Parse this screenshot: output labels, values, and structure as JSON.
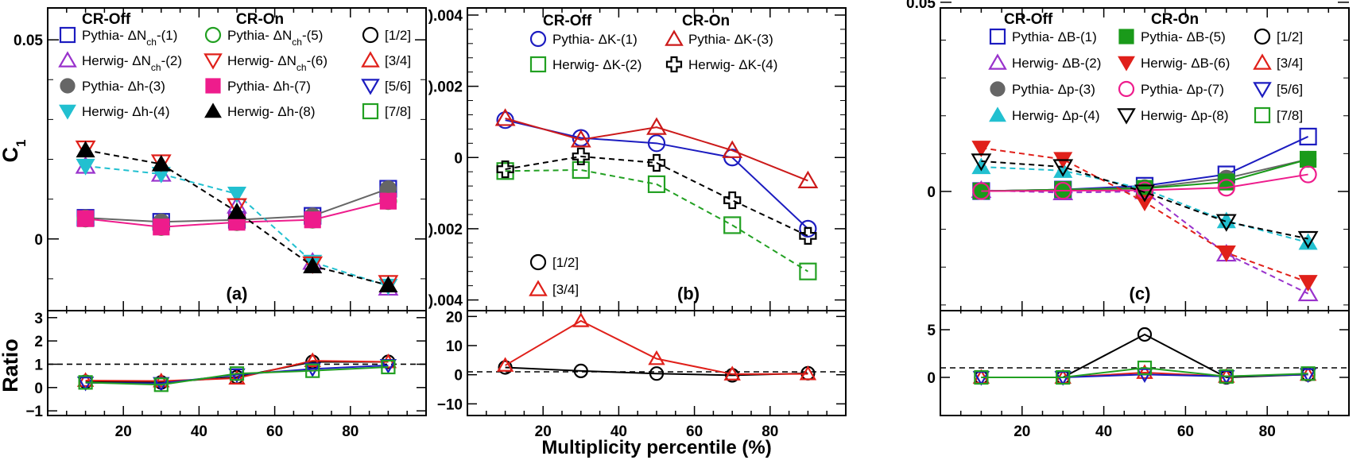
{
  "chart_data": [
    {
      "type": "line",
      "panel_label": "(a)",
      "ylabel": "C",
      "ylabel_sub": "1",
      "xlim": [
        0,
        100
      ],
      "ylim": [
        -0.018,
        0.058
      ],
      "yticks": [
        0,
        0.05
      ],
      "ytick_labels": [
        "0",
        "0.05"
      ],
      "xticks": [
        20,
        40,
        60,
        80
      ],
      "xtick_labels": [
        "20",
        "40",
        "60",
        "80"
      ],
      "legend_headers": [
        "CR-Off",
        "CR-On"
      ],
      "series": [
        {
          "name": "Pythia- ΔN",
          "sub": "ch",
          "tag": "-(1)",
          "color": "#1c1cc0",
          "marker": "square-open",
          "line": "none",
          "x": [
            10,
            30,
            50,
            70,
            90
          ],
          "y": [
            0.0053,
            0.0043,
            0.0048,
            0.0058,
            0.0126
          ]
        },
        {
          "name": "Herwig- ΔN",
          "sub": "ch",
          "tag": "-(2)",
          "color": "#9932cc",
          "marker": "triangle-up-open",
          "line": "none",
          "x": [
            10,
            30,
            50,
            70,
            90
          ],
          "y": [
            0.0183,
            0.0163,
            0.0083,
            -0.0058,
            -0.0123
          ]
        },
        {
          "name": "Pythia- Δh",
          "sub": "",
          "tag": "-(3)",
          "color": "#666666",
          "marker": "circle-filled",
          "line": "solid",
          "x": [
            10,
            30,
            50,
            70,
            90
          ],
          "y": [
            0.0053,
            0.0043,
            0.0048,
            0.0058,
            0.0126
          ]
        },
        {
          "name": "Herwig- Δh",
          "sub": "",
          "tag": "-(4)",
          "color": "#22c0d0",
          "marker": "triangle-down-filled",
          "line": "dashed",
          "x": [
            10,
            30,
            50,
            70,
            90
          ],
          "y": [
            0.0183,
            0.0163,
            0.0113,
            -0.0058,
            -0.0118
          ]
        },
        {
          "name": "Pythia- ΔN",
          "sub": "ch",
          "tag": "-(5)",
          "color": "#22a022",
          "marker": "circle-open",
          "line": "none",
          "x": [
            10,
            30,
            50,
            70,
            90
          ],
          "y": [
            0.0051,
            0.003,
            0.0042,
            0.0048,
            0.0095
          ]
        },
        {
          "name": "Herwig- ΔN",
          "sub": "ch",
          "tag": "-(6)",
          "color": "#e0201a",
          "marker": "triangle-down-open",
          "line": "none",
          "x": [
            10,
            30,
            50,
            70,
            90
          ],
          "y": [
            0.0228,
            0.0193,
            0.0083,
            -0.0063,
            -0.011
          ]
        },
        {
          "name": "Pythia- Δh",
          "sub": "",
          "tag": "-(7)",
          "color": "#ee1c8c",
          "marker": "square-filled",
          "line": "solid",
          "x": [
            10,
            30,
            50,
            70,
            90
          ],
          "y": [
            0.0051,
            0.003,
            0.0042,
            0.0048,
            0.0095
          ]
        },
        {
          "name": "Herwig- Δh",
          "sub": "",
          "tag": "-(8)",
          "color": "#000000",
          "marker": "triangle-up-filled",
          "line": "dashed",
          "x": [
            10,
            30,
            50,
            70,
            90
          ],
          "y": [
            0.0223,
            0.0188,
            0.0068,
            -0.0068,
            -0.0116
          ]
        }
      ],
      "ratio": {
        "ylabel": "Ratio",
        "ylim": [
          -1.2,
          3.3
        ],
        "yticks": [
          -1,
          0,
          1,
          2,
          3
        ],
        "ytick_labels": [
          "−1",
          "0",
          "1",
          "2",
          "3"
        ],
        "reference_line": 1,
        "series": [
          {
            "name": "[1/2]",
            "color": "#000000",
            "marker": "circle-open",
            "x": [
              10,
              30,
              50,
              70,
              90
            ],
            "y": [
              0.25,
              0.22,
              0.45,
              1.1,
              1.1
            ]
          },
          {
            "name": "[3/4]",
            "color": "#e0201a",
            "marker": "triangle-up-open",
            "x": [
              10,
              30,
              50,
              70,
              90
            ],
            "y": [
              0.3,
              0.28,
              0.4,
              1.15,
              1.1
            ]
          },
          {
            "name": "[5/6]",
            "color": "#1c1cc0",
            "marker": "triangle-down-open",
            "x": [
              10,
              30,
              50,
              70,
              90
            ],
            "y": [
              0.2,
              0.18,
              0.55,
              0.8,
              0.95
            ]
          },
          {
            "name": "[7/8]",
            "color": "#22a022",
            "marker": "square-open",
            "x": [
              10,
              30,
              50,
              70,
              90
            ],
            "y": [
              0.22,
              0.12,
              0.6,
              0.72,
              0.88
            ]
          }
        ]
      }
    },
    {
      "type": "line",
      "panel_label": "(b)",
      "xlim": [
        0,
        100
      ],
      "ylim": [
        -0.0043,
        0.0042
      ],
      "yticks": [
        -0.004,
        -0.002,
        0,
        0.002,
        0.004
      ],
      "ytick_labels": [
        ").004",
        ").002",
        "0",
        ").002",
        ").004"
      ],
      "xticks": [
        20,
        40,
        60,
        80
      ],
      "xtick_labels": [
        "20",
        "40",
        "60",
        "80"
      ],
      "xlabel": "Multiplicity percentile (%)",
      "legend_headers": [
        "CR-Off",
        "CR-On"
      ],
      "series": [
        {
          "name": "Pythia- ΔK",
          "sub": "",
          "tag": "-(1)",
          "color": "#1c1cc0",
          "marker": "circle-open",
          "line": "solid",
          "x": [
            10,
            30,
            50,
            70,
            90
          ],
          "y": [
            0.00105,
            0.00055,
            0.0004,
            0.0,
            -0.002
          ]
        },
        {
          "name": "Herwig- ΔK",
          "sub": "",
          "tag": "-(2)",
          "color": "#22a022",
          "marker": "square-open",
          "line": "dashed",
          "x": [
            10,
            30,
            50,
            70,
            90
          ],
          "y": [
            -0.00038,
            -0.00035,
            -0.00075,
            -0.0019,
            -0.0032
          ]
        },
        {
          "name": "Pythia- ΔK",
          "sub": "",
          "tag": "-(3)",
          "color": "#cc1a1a",
          "marker": "triangle-up-open",
          "line": "solid",
          "x": [
            10,
            30,
            50,
            70,
            90
          ],
          "y": [
            0.0011,
            0.0005,
            0.00085,
            0.0002,
            -0.00065
          ]
        },
        {
          "name": "Herwig- ΔK",
          "sub": "",
          "tag": "-(4)",
          "color": "#000000",
          "marker": "cross-open",
          "line": "dashed",
          "x": [
            10,
            30,
            50,
            70,
            90
          ],
          "y": [
            -0.00033,
            3e-05,
            -0.00015,
            -0.0012,
            -0.0022
          ]
        }
      ],
      "ratio": {
        "ylim": [
          -14,
          22
        ],
        "yticks": [
          -10,
          0,
          10,
          20
        ],
        "ytick_labels": [
          "−10",
          "0",
          "10",
          "20"
        ],
        "reference_line": 1,
        "series": [
          {
            "name": "[1/2]",
            "color": "#000000",
            "marker": "circle-open",
            "x": [
              10,
              30,
              50,
              70,
              90
            ],
            "y": [
              2.5,
              1.3,
              0.4,
              -0.2,
              0.5
            ]
          },
          {
            "name": "[3/4]",
            "color": "#e0201a",
            "marker": "triangle-up-open",
            "x": [
              10,
              30,
              50,
              70,
              90
            ],
            "y": [
              3.2,
              18.5,
              5.5,
              0.2,
              0.3
            ]
          }
        ]
      }
    },
    {
      "type": "line",
      "panel_label": "(c)",
      "xlim": [
        0,
        100
      ],
      "ylim": [
        -0.0315,
        0.0485
      ],
      "yticks": [
        0,
        0.05
      ],
      "ytick_labels": [
        "0",
        "0.05"
      ],
      "xticks": [
        20,
        40,
        60,
        80
      ],
      "xtick_labels": [
        "20",
        "40",
        "60",
        "80"
      ],
      "legend_headers": [
        "CR-Off",
        "CR-On"
      ],
      "series": [
        {
          "name": "Pythia- ΔB",
          "sub": "",
          "tag": "-(1)",
          "color": "#1c1cc0",
          "marker": "square-open",
          "line": "solid",
          "x": [
            10,
            30,
            50,
            70,
            90
          ],
          "y": [
            0.0001,
            0.0005,
            0.0015,
            0.0045,
            0.0145
          ]
        },
        {
          "name": "Herwig- ΔB",
          "sub": "",
          "tag": "-(2)",
          "color": "#9932cc",
          "marker": "triangle-up-open",
          "line": "dashed",
          "x": [
            10,
            30,
            50,
            70,
            90
          ],
          "y": [
            0.0003,
            -0.0003,
            -0.0,
            -0.0165,
            -0.027
          ]
        },
        {
          "name": "Pythia- Δp",
          "sub": "",
          "tag": "-(3)",
          "color": "#666666",
          "marker": "circle-filled",
          "line": "solid",
          "x": [
            10,
            30,
            50,
            70,
            90
          ],
          "y": [
            0.0001,
            0.0005,
            0.001,
            0.0035,
            0.0085
          ]
        },
        {
          "name": "Herwig- Δp",
          "sub": "",
          "tag": "-(4)",
          "color": "#22c0d0",
          "marker": "triangle-up-filled",
          "line": "dashed",
          "x": [
            10,
            30,
            50,
            70,
            90
          ],
          "y": [
            0.0065,
            0.0055,
            0.0006,
            -0.0078,
            -0.0135
          ]
        },
        {
          "name": "Pythia- ΔB",
          "sub": "",
          "tag": "-(5)",
          "color": "#1a9a1a",
          "marker": "square-filled",
          "line": "solid",
          "x": [
            10,
            30,
            50,
            70,
            90
          ],
          "y": [
            0.0001,
            0.0005,
            0.0008,
            0.0025,
            0.0085
          ]
        },
        {
          "name": "Herwig- ΔB",
          "sub": "",
          "tag": "-(6)",
          "color": "#e0201a",
          "marker": "triangle-down-filled",
          "line": "dashed",
          "x": [
            10,
            30,
            50,
            70,
            90
          ],
          "y": [
            0.0115,
            0.0085,
            -0.0028,
            -0.0162,
            -0.024
          ]
        },
        {
          "name": "Pythia- Δp",
          "sub": "",
          "tag": "-(7)",
          "color": "#ee1c8c",
          "marker": "circle-open",
          "line": "solid",
          "x": [
            10,
            30,
            50,
            70,
            90
          ],
          "y": [
            0.0001,
            0.0002,
            0.0003,
            0.001,
            0.0045
          ]
        },
        {
          "name": "Herwig- Δp",
          "sub": "",
          "tag": "-(8)",
          "color": "#000000",
          "marker": "triangle-down-open",
          "line": "dashed",
          "x": [
            10,
            30,
            50,
            70,
            90
          ],
          "y": [
            0.008,
            0.0065,
            -0.0002,
            -0.008,
            -0.0125
          ]
        }
      ],
      "ratio": {
        "ylim": [
          -4,
          7
        ],
        "yticks": [
          0,
          5
        ],
        "ytick_labels": [
          "0",
          "5"
        ],
        "reference_line": 1,
        "series": [
          {
            "name": "[1/2]",
            "color": "#000000",
            "marker": "circle-open",
            "x": [
              10,
              30,
              50,
              70,
              90
            ],
            "y": [
              0.0,
              0.0,
              4.5,
              0.0,
              0.3
            ]
          },
          {
            "name": "[3/4]",
            "color": "#e0201a",
            "marker": "triangle-up-open",
            "x": [
              10,
              30,
              50,
              70,
              90
            ],
            "y": [
              0.0,
              0.0,
              0.5,
              0.1,
              0.3
            ]
          },
          {
            "name": "[5/6]",
            "color": "#1c1cc0",
            "marker": "triangle-down-open",
            "x": [
              10,
              30,
              50,
              70,
              90
            ],
            "y": [
              0.0,
              0.0,
              0.3,
              0.1,
              0.3
            ]
          },
          {
            "name": "[7/8]",
            "color": "#22a022",
            "marker": "square-open",
            "x": [
              10,
              30,
              50,
              70,
              90
            ],
            "y": [
              0.0,
              0.0,
              1.0,
              0.1,
              0.4
            ]
          }
        ]
      }
    }
  ]
}
